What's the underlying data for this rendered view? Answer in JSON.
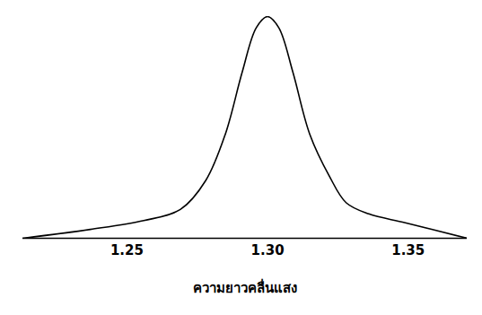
{
  "chart_data": {
    "type": "line",
    "x_label": "ความยาวคลื่นแสง",
    "x": [
      1.213,
      1.237,
      1.256,
      1.269,
      1.278,
      1.285,
      1.291,
      1.296,
      1.3,
      1.304,
      1.309,
      1.315,
      1.322,
      1.328,
      1.336,
      1.349,
      1.371
    ],
    "values": [
      0.0,
      0.04,
      0.08,
      0.13,
      0.26,
      0.47,
      0.75,
      0.95,
      1.0,
      0.95,
      0.75,
      0.47,
      0.28,
      0.16,
      0.11,
      0.07,
      0.0
    ],
    "color": "#000000",
    "xlim": [
      1.213,
      1.371
    ],
    "xticks": [
      1.25,
      {
        "value": 1.3,
        "label": "1.30"
      },
      1.35
    ],
    "ylim": [
      0,
      1
    ],
    "yticks": [],
    "tick_labels": "x",
    "grid": false
  }
}
